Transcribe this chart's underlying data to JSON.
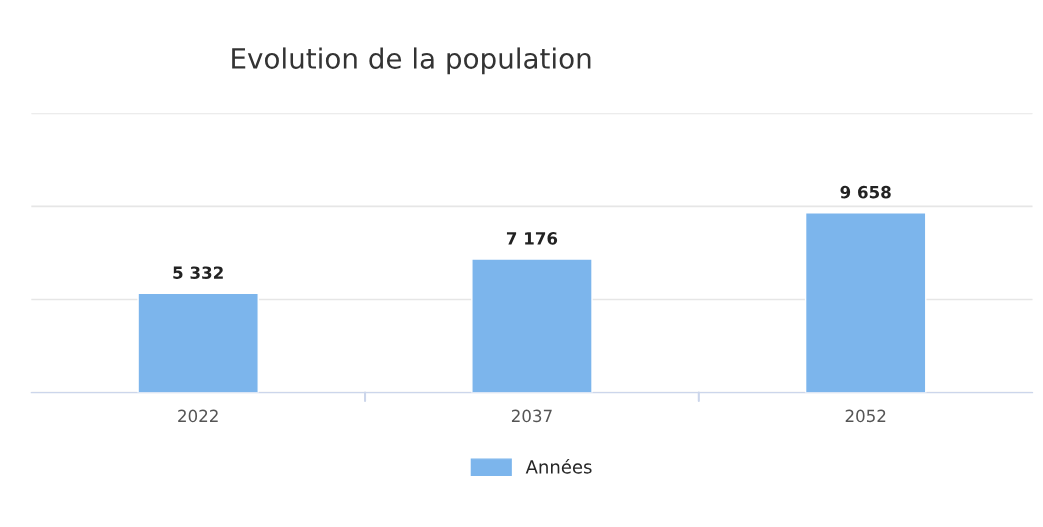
{
  "chart_data": {
    "type": "bar",
    "title": "Evolution de la population",
    "categories": [
      "2022",
      "2037",
      "2052"
    ],
    "series": [
      {
        "name": "Années",
        "color": "#7cb5ec",
        "values": [
          5332,
          7176,
          9658
        ]
      }
    ],
    "data_labels": true,
    "ylim": [
      0,
      15000
    ],
    "yticks": [
      {
        "value": 0,
        "label": null
      },
      {
        "value": 5000,
        "label": null
      },
      {
        "value": 10000,
        "label": null
      },
      {
        "value": 15000,
        "label": null
      }
    ],
    "tick_labels": "x",
    "grid": "y",
    "legend": "bottom"
  }
}
